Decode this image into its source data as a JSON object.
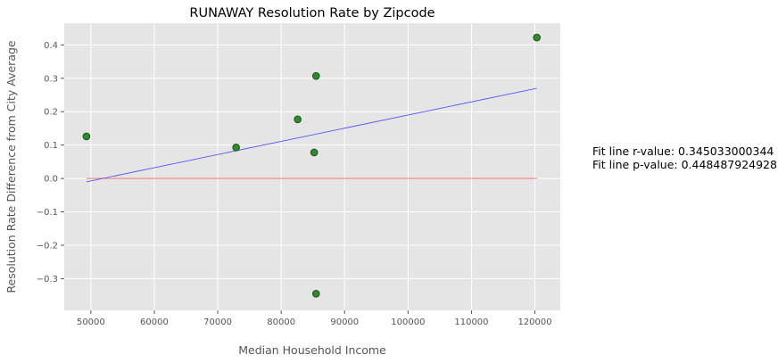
{
  "chart_data": {
    "type": "scatter",
    "title": "RUNAWAY Resolution Rate by Zipcode",
    "xlabel": "Median Household Income",
    "ylabel": "Resolution Rate Difference from City Average",
    "xlim": [
      45800,
      124000
    ],
    "ylim": [
      -0.395,
      0.465
    ],
    "xticks": [
      50000,
      60000,
      70000,
      80000,
      90000,
      100000,
      110000,
      120000
    ],
    "yticks": [
      -0.3,
      -0.2,
      -0.1,
      0.0,
      0.1,
      0.2,
      0.3,
      0.4
    ],
    "xtick_labels": [
      "50000",
      "60000",
      "70000",
      "80000",
      "90000",
      "100000",
      "110000",
      "120000"
    ],
    "ytick_labels": [
      "−0.3",
      "−0.2",
      "−0.1",
      "0.0",
      "0.1",
      "0.2",
      "0.3",
      "0.4"
    ],
    "grid": true,
    "points": [
      {
        "x": 49300,
        "y": 0.126
      },
      {
        "x": 72900,
        "y": 0.093
      },
      {
        "x": 82600,
        "y": 0.177
      },
      {
        "x": 85200,
        "y": 0.078
      },
      {
        "x": 85500,
        "y": 0.307
      },
      {
        "x": 85500,
        "y": -0.345
      },
      {
        "x": 120300,
        "y": 0.422
      }
    ],
    "fit_line": {
      "x": [
        49300,
        120300
      ],
      "y": [
        -0.01,
        0.27
      ]
    },
    "zero_line": {
      "x": [
        49300,
        120300
      ],
      "y": [
        0.0,
        0.0
      ]
    },
    "annotations": [
      "Fit line r-value: 0.345033000344",
      "Fit line p-value: 0.448487924928"
    ],
    "colors": {
      "background": "#e5e5e5",
      "grid": "#ffffff",
      "point_fill": "#2e8b2e",
      "point_edge": "#1f4f1f",
      "fit_line": "#4444ff",
      "zero_line": "#ee6666"
    }
  }
}
